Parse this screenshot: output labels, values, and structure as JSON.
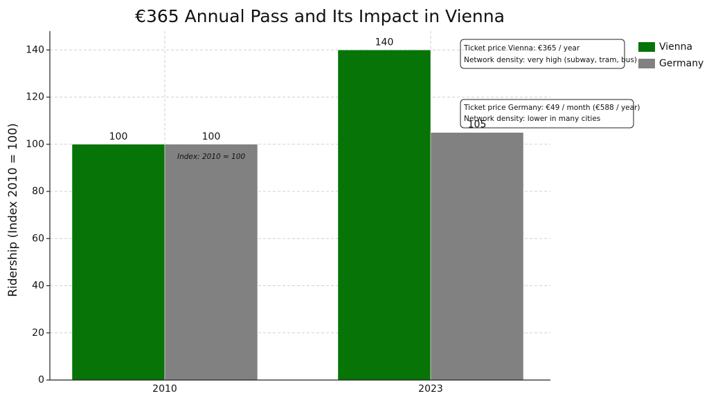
{
  "chart_data": {
    "type": "bar",
    "title": "€365 Annual Pass and Its Impact in Vienna",
    "y_label": "Ridership (Index 2010 = 100)",
    "categories": [
      "2010",
      "2023"
    ],
    "series": [
      {
        "name": "Vienna",
        "color": "#067406",
        "values": [
          100,
          140
        ]
      },
      {
        "name": "Germany",
        "color": "#818181",
        "values": [
          100,
          105
        ]
      }
    ],
    "ylim": [
      0,
      148
    ],
    "yticks": [
      0,
      20,
      40,
      60,
      80,
      100,
      120,
      140
    ],
    "grid": true,
    "legend": "right",
    "annotations": [
      "Index: 2010 = 100",
      "Ticket price Vienna: €365 / year",
      "Network density: very high (subway, tram, bus)",
      "Ticket price Germany: €49 / month (€588 / year)",
      "Network density: lower in many cities"
    ]
  }
}
